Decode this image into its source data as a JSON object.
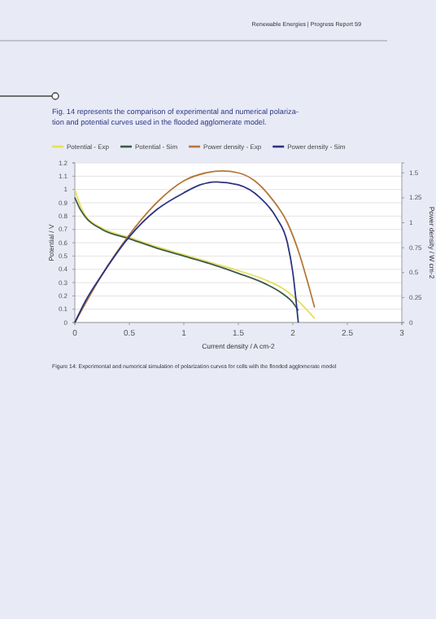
{
  "chart_data": {
    "type": "line",
    "title": "Fig. 14 represents the comparison of experimental and numerical polariza-\ntion and potential curves used in the flooded agglomerate model.",
    "xlabel": "Current density / A cm-2",
    "ylabel": "Potential / V",
    "y2label": "Power density / W cm-2",
    "xlim": [
      0,
      3
    ],
    "xticks": [
      0,
      0.5,
      1,
      1.5,
      2,
      2.5,
      3
    ],
    "ylim": [
      0,
      1.2
    ],
    "yticks": [
      0,
      0.1,
      0.2,
      0.3,
      0.4,
      0.5,
      0.6,
      0.7,
      0.8,
      0.9,
      1,
      1.1,
      1.2
    ],
    "y2lim": [
      0,
      1.6
    ],
    "y2ticks": [
      0,
      0.25,
      0.5,
      0.75,
      1,
      1.25,
      1.5
    ],
    "grid": "y",
    "legend": "top",
    "line_style": "solid",
    "series": [
      {
        "name": "Potential - Exp",
        "color": "#e6de5a",
        "x": [
          0,
          0.05,
          0.1,
          0.25,
          0.5,
          0.75,
          1,
          1.25,
          1.5,
          1.75,
          1.9,
          2,
          2.1,
          2.2
        ],
        "values": [
          1.0,
          0.88,
          0.8,
          0.71,
          0.64,
          0.57,
          0.51,
          0.45,
          0.39,
          0.32,
          0.26,
          0.2,
          0.12,
          0.03
        ]
      },
      {
        "name": "Potential - Sim",
        "color": "#3b5a4a",
        "x": [
          0,
          0.05,
          0.1,
          0.25,
          0.5,
          0.75,
          1,
          1.25,
          1.5,
          1.75,
          1.9,
          2,
          2.05
        ],
        "values": [
          0.94,
          0.85,
          0.79,
          0.7,
          0.63,
          0.56,
          0.5,
          0.44,
          0.37,
          0.29,
          0.22,
          0.15,
          0.09
        ]
      },
      {
        "name": "Power density - Exp",
        "color": "#b5773a",
        "axis": "y2",
        "x": [
          0,
          0.25,
          0.5,
          0.75,
          1,
          1.2,
          1.35,
          1.5,
          1.65,
          1.8,
          1.95,
          2.05,
          2.15,
          2.2
        ],
        "values": [
          0,
          0.48,
          0.88,
          1.2,
          1.42,
          1.5,
          1.52,
          1.5,
          1.42,
          1.25,
          1.0,
          0.72,
          0.35,
          0.15
        ]
      },
      {
        "name": "Power density - Sim",
        "color": "#2a3580",
        "axis": "y2",
        "x": [
          0,
          0.1,
          0.25,
          0.5,
          0.75,
          1,
          1.15,
          1.3,
          1.5,
          1.7,
          1.85,
          1.95,
          2.0,
          2.05
        ],
        "values": [
          0,
          0.22,
          0.48,
          0.86,
          1.13,
          1.3,
          1.38,
          1.41,
          1.38,
          1.25,
          1.05,
          0.8,
          0.5,
          0
        ]
      }
    ],
    "annotations": [
      "Renewable Energies | Progress Report 59",
      "Figure 14: Experimental and numerical simulation of polarization curves for cells with the flooded agglomerate model"
    ]
  }
}
